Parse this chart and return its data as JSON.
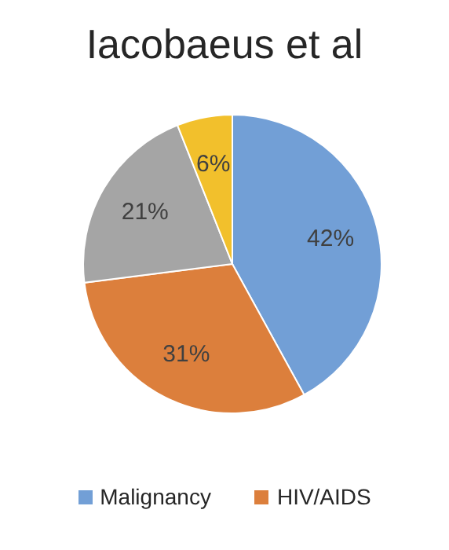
{
  "chart_data": {
    "type": "pie",
    "title": "Iacobaeus et al",
    "categories": [
      "Malignancy",
      "HIV/AIDS",
      null,
      null
    ],
    "values": [
      42,
      31,
      21,
      6
    ],
    "colors": [
      "#729fd6",
      "#dc7f3c",
      "#a5a5a5",
      "#f2c02c"
    ],
    "value_labels": [
      "42%",
      "31%",
      "21%",
      "6%"
    ],
    "legend": "bottom"
  }
}
